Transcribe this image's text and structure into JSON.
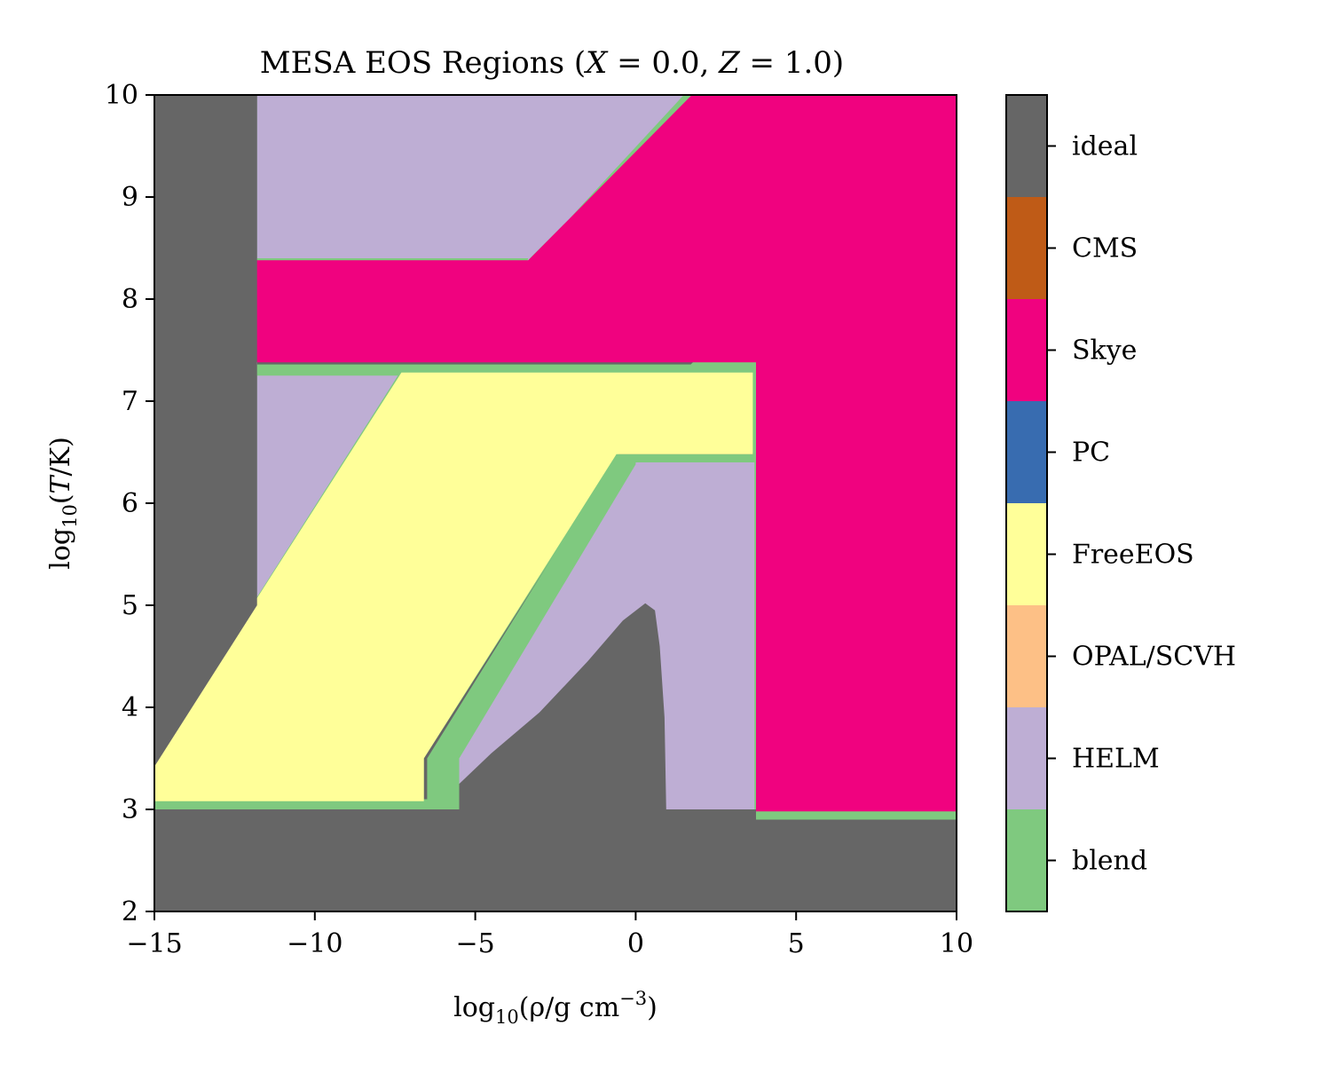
{
  "chart_data": {
    "type": "region_map",
    "title": "MESA EOS Regions (X = 0.0, Z = 1.0)",
    "title_parts": {
      "prefix": "MESA EOS Regions (",
      "x_var": "X",
      "x_eq": " = 0.0, ",
      "z_var": "Z",
      "z_eq": " = 1.0)"
    },
    "xlabel": "log10(ρ/g cm^-3)",
    "xlabel_parts": {
      "log": "log",
      "sub": "10",
      "body": "(ρ/g cm",
      "sup": "−3",
      "close": ")"
    },
    "ylabel": "log10(T/K)",
    "ylabel_parts": {
      "log": "log",
      "sub": "10",
      "open": "(",
      "var": "T",
      "close": "/K)"
    },
    "xlim": [
      -15,
      10
    ],
    "ylim": [
      2,
      10
    ],
    "x_ticks": [
      -15,
      -10,
      -5,
      0,
      5,
      10
    ],
    "x_tick_labels": [
      "−15",
      "−10",
      "−5",
      "0",
      "5",
      "10"
    ],
    "y_ticks": [
      2,
      3,
      4,
      5,
      6,
      7,
      8,
      9,
      10
    ],
    "y_tick_labels": [
      "2",
      "3",
      "4",
      "5",
      "6",
      "7",
      "8",
      "9",
      "10"
    ],
    "colorbar": [
      {
        "label": "ideal",
        "color": "#666666"
      },
      {
        "label": "CMS",
        "color": "#bf5b17"
      },
      {
        "label": "Skye",
        "color": "#f0027f"
      },
      {
        "label": "PC",
        "color": "#386cb0"
      },
      {
        "label": "FreeEOS",
        "color": "#ffff99"
      },
      {
        "label": "OPAL/SCVH",
        "color": "#fdc086"
      },
      {
        "label": "HELM",
        "color": "#beaed4"
      },
      {
        "label": "blend",
        "color": "#7fc97f"
      }
    ],
    "regions": [
      {
        "eos": "ideal",
        "points": [
          [
            -15,
            2
          ],
          [
            10,
            2
          ],
          [
            10,
            10
          ],
          [
            -15,
            10
          ]
        ]
      },
      {
        "eos": "blend",
        "points": [
          [
            -11.8,
            3.05
          ],
          [
            -11.8,
            10
          ],
          [
            -7.3,
            10
          ],
          [
            1.7,
            10
          ],
          [
            -3.4,
            8.4
          ],
          [
            -12.1,
            8.4
          ],
          [
            -12.1,
            7.25
          ],
          [
            -7.4,
            7.25
          ],
          [
            -15,
            3.5
          ],
          [
            -15,
            3.05
          ],
          [
            -6.6,
            3.05
          ],
          [
            -6.6,
            3.5
          ],
          [
            -0.5,
            6.5
          ],
          [
            3.65,
            6.5
          ],
          [
            3.65,
            7.4
          ],
          [
            3.65,
            2.9
          ],
          [
            10,
            2.9
          ],
          [
            10,
            10
          ]
        ]
      },
      {
        "eos": "HELM",
        "points": [
          [
            -11.8,
            2.95
          ],
          [
            -11.8,
            10
          ],
          [
            1.6,
            10
          ],
          [
            -3.5,
            8.3
          ],
          [
            -12.0,
            8.3
          ],
          [
            -12.0,
            7.3
          ],
          [
            -7.3,
            7.3
          ],
          [
            -11.8,
            5.05
          ],
          [
            -11.8,
            2.95
          ],
          [
            -6.5,
            2.95
          ],
          [
            -0.5,
            6.4
          ],
          [
            3.7,
            6.4
          ],
          [
            3.7,
            2.95
          ]
        ]
      },
      {
        "eos": "blend",
        "points": [
          [
            1.5,
            10
          ],
          [
            1.8,
            10
          ],
          [
            -3.3,
            8.4
          ],
          [
            -3.5,
            8.3
          ]
        ]
      },
      {
        "eos": "blend",
        "points": [
          [
            -12.15,
            8.4
          ],
          [
            -3.35,
            8.4
          ],
          [
            -3.45,
            8.3
          ],
          [
            -12.15,
            8.3
          ]
        ]
      },
      {
        "eos": "blend",
        "points": [
          [
            -12.15,
            7.36
          ],
          [
            3.75,
            7.36
          ],
          [
            3.75,
            7.25
          ],
          [
            -12.15,
            7.25
          ]
        ]
      },
      {
        "eos": "blend",
        "points": [
          [
            -15,
            3.5
          ],
          [
            -7.35,
            7.28
          ],
          [
            -7.2,
            7.28
          ],
          [
            -15,
            3.42
          ]
        ]
      },
      {
        "eos": "blend",
        "points": [
          [
            -15,
            3.1
          ],
          [
            -6.5,
            3.1
          ],
          [
            -6.5,
            3.5
          ],
          [
            -0.6,
            6.48
          ],
          [
            3.75,
            6.48
          ],
          [
            3.75,
            2.9
          ],
          [
            10,
            2.9
          ],
          [
            10,
            2.99
          ],
          [
            3.85,
            2.99
          ],
          [
            3.85,
            6.4
          ],
          [
            0.0,
            6.4
          ],
          [
            0.0,
            6.38
          ],
          [
            -5.5,
            3.5
          ],
          [
            -5.5,
            2.99
          ],
          [
            -15,
            2.99
          ]
        ]
      },
      {
        "eos": "FreeEOS",
        "points": [
          [
            -15,
            3.5
          ],
          [
            -7.3,
            7.28
          ],
          [
            3.65,
            7.28
          ],
          [
            3.65,
            6.48
          ],
          [
            -0.6,
            6.48
          ],
          [
            -6.6,
            3.5
          ],
          [
            -6.6,
            3.08
          ],
          [
            -15,
            3.08
          ]
        ]
      },
      {
        "eos": "Skye",
        "points": [
          [
            -12.0,
            7.38
          ],
          [
            3.75,
            7.38
          ],
          [
            3.75,
            2.98
          ],
          [
            10,
            2.98
          ],
          [
            10,
            10
          ],
          [
            1.75,
            10
          ],
          [
            -3.35,
            8.38
          ],
          [
            -12.0,
            8.38
          ]
        ]
      },
      {
        "eos": "ideal",
        "points": [
          [
            -11.8,
            2.0
          ],
          [
            -11.8,
            10
          ],
          [
            -15,
            10
          ],
          [
            -15,
            3.42
          ],
          [
            -11.8,
            5.0
          ]
        ]
      },
      {
        "eos": "ideal",
        "points": [
          [
            -5.5,
            3.25
          ],
          [
            -4.5,
            3.55
          ],
          [
            -3.0,
            3.95
          ],
          [
            -1.5,
            4.45
          ],
          [
            -0.4,
            4.85
          ],
          [
            0.3,
            5.02
          ],
          [
            0.6,
            4.95
          ],
          [
            0.75,
            4.6
          ],
          [
            0.9,
            3.9
          ],
          [
            0.95,
            3.0
          ],
          [
            3.75,
            3.0
          ],
          [
            3.75,
            2.9
          ],
          [
            10,
            2.9
          ],
          [
            10,
            2
          ],
          [
            -15,
            2
          ],
          [
            -15,
            3.0
          ],
          [
            -5.5,
            3.0
          ]
        ]
      }
    ]
  }
}
